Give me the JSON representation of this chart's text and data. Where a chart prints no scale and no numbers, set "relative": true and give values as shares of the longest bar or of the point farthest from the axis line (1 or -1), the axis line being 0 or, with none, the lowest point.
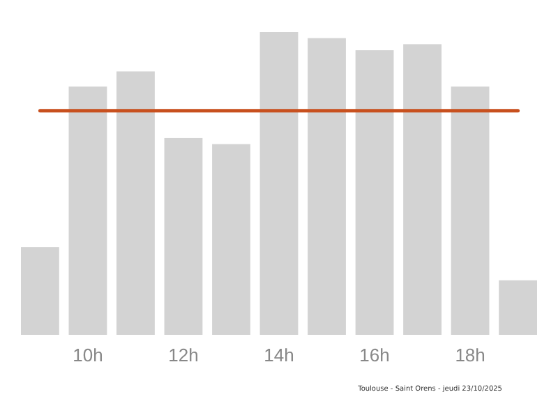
{
  "chart_data": {
    "type": "bar",
    "relative": true,
    "categories": [
      null,
      "10h",
      null,
      "12h",
      null,
      "14h",
      null,
      "16h",
      null,
      "18h",
      null
    ],
    "values": [
      0.29,
      0.82,
      0.87,
      0.65,
      0.63,
      1,
      0.98,
      0.94,
      0.96,
      0.82,
      0.18
    ],
    "color": "#d3d3d3",
    "ref_lines": [
      {
        "axis": "y",
        "value": 0.74,
        "color": "#c8501e"
      }
    ],
    "annotations": [
      "Toulouse - Saint Orens - jeudi 23/10/2025"
    ]
  }
}
